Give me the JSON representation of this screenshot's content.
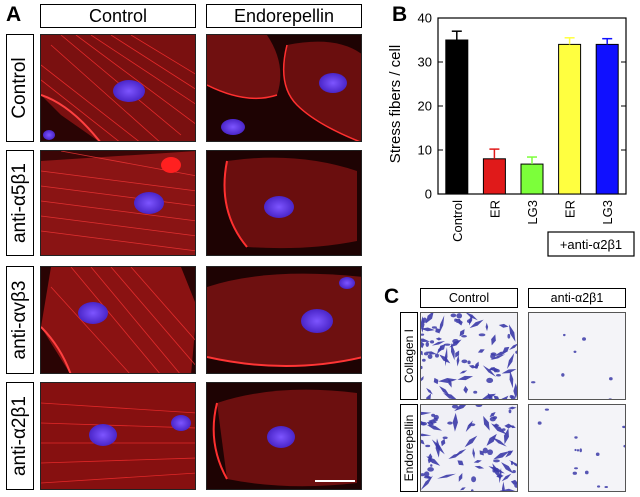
{
  "panelA": {
    "letter": "A",
    "columns": [
      "Control",
      "Endorepellin"
    ],
    "rows": [
      "Control",
      "anti-α5β1",
      "anti-αvβ3",
      "anti-α2β1"
    ]
  },
  "panelB": {
    "letter": "B"
  },
  "panelC": {
    "letter": "C",
    "columns": [
      "Control",
      "anti-α2β1"
    ],
    "rows": [
      "Collagen I",
      "Endorepellin"
    ]
  },
  "colors": {
    "actin": "#d41616",
    "nucleus": "#6a3bff",
    "stain": "#3b3aa8"
  },
  "chart_data": {
    "type": "bar",
    "title": "",
    "xlabel": "",
    "ylabel": "Stress fibers / cell",
    "ylim": [
      0,
      40
    ],
    "yticks": [
      0,
      10,
      20,
      30,
      40
    ],
    "categories": [
      "Control",
      "ER",
      "LG3",
      "ER",
      "LG3"
    ],
    "values": [
      35,
      8,
      6.8,
      34,
      34
    ],
    "errors": [
      2,
      2.2,
      1.6,
      1.5,
      1.3
    ],
    "bar_colors": [
      "#000000",
      "#e01a1a",
      "#7cff3a",
      "#ffff40",
      "#1010ff"
    ],
    "group_label": "+anti-α2β1",
    "grid": false
  }
}
